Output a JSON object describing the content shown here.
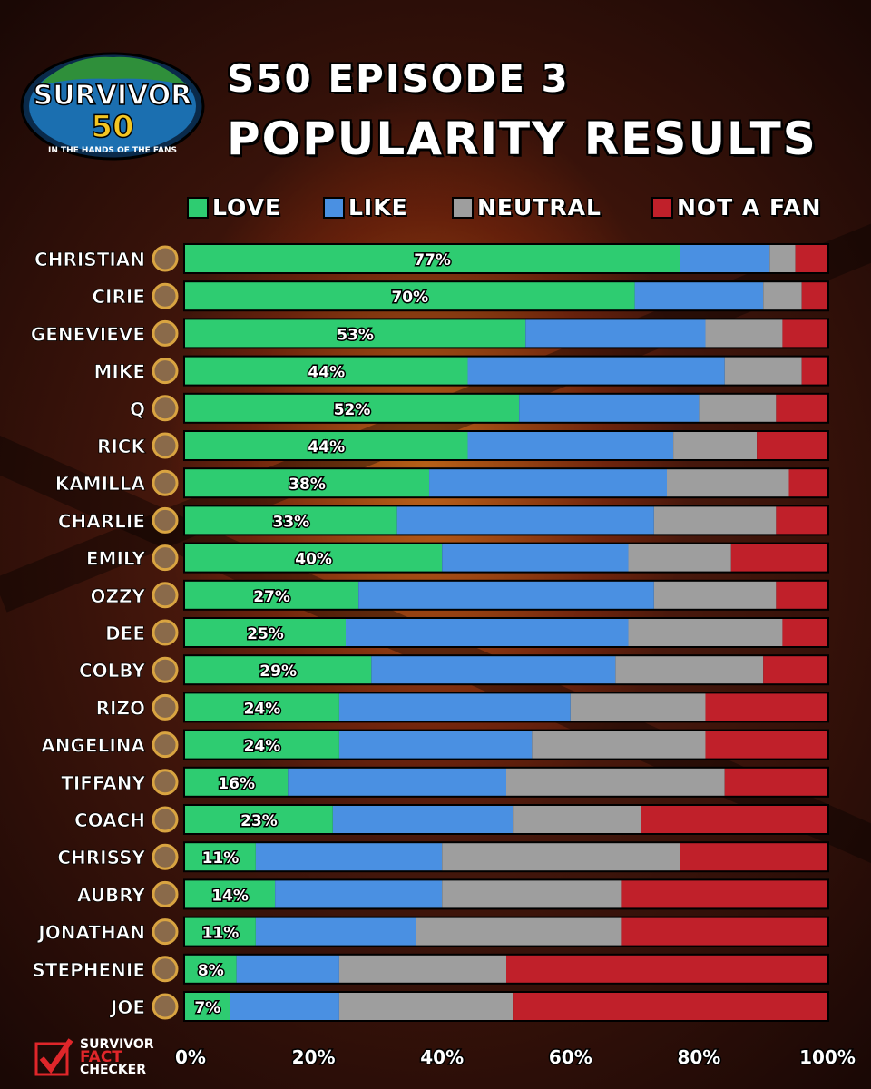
{
  "header": {
    "title_line1": "S50 EPISODE 3",
    "title_line2": "POPULARITY RESULTS"
  },
  "logo": {
    "title": "SURVIVOR",
    "number": "50",
    "tagline": "IN THE HANDS OF THE FANS"
  },
  "brand": {
    "line1": "SURVIVOR",
    "line2": "FACT",
    "line3": "CHECKER"
  },
  "colors": {
    "love": "#2ecc71",
    "like": "#4a90e2",
    "neutral": "#9e9e9e",
    "not_a_fan": "#c0202a"
  },
  "chart_data": {
    "type": "bar",
    "orientation": "horizontal",
    "stacked": true,
    "xlim": [
      0,
      100
    ],
    "x_ticks": [
      "0%",
      "20%",
      "40%",
      "60%",
      "80%",
      "100%"
    ],
    "legend": [
      "LOVE",
      "LIKE",
      "NEUTRAL",
      "NOT A FAN"
    ],
    "legend_position": "top",
    "categories": [
      "CHRISTIAN",
      "CIRIE",
      "GENEVIEVE",
      "MIKE",
      "Q",
      "RICK",
      "KAMILLA",
      "CHARLIE",
      "EMILY",
      "OZZY",
      "DEE",
      "COLBY",
      "RIZO",
      "ANGELINA",
      "TIFFANY",
      "COACH",
      "CHRISSY",
      "AUBRY",
      "JONATHAN",
      "STEPHENIE",
      "JOE"
    ],
    "series": [
      {
        "name": "LOVE",
        "values": [
          77,
          70,
          53,
          44,
          52,
          44,
          38,
          33,
          40,
          27,
          25,
          29,
          24,
          24,
          16,
          23,
          11,
          14,
          11,
          8,
          7
        ]
      },
      {
        "name": "LIKE",
        "values": [
          14,
          20,
          28,
          40,
          28,
          32,
          37,
          40,
          29,
          46,
          44,
          38,
          36,
          30,
          34,
          28,
          29,
          26,
          25,
          16,
          17
        ]
      },
      {
        "name": "NEUTRAL",
        "values": [
          4,
          6,
          12,
          12,
          12,
          13,
          19,
          19,
          16,
          19,
          24,
          23,
          21,
          27,
          34,
          20,
          37,
          28,
          32,
          26,
          27
        ]
      },
      {
        "name": "NOT A FAN",
        "values": [
          5,
          4,
          7,
          4,
          8,
          11,
          6,
          8,
          15,
          8,
          7,
          10,
          19,
          19,
          16,
          29,
          23,
          32,
          32,
          50,
          49
        ]
      }
    ],
    "love_labels": [
      "77%",
      "70%",
      "53%",
      "44%",
      "52%",
      "44%",
      "38%",
      "33%",
      "40%",
      "27%",
      "25%",
      "29%",
      "24%",
      "24%",
      "16%",
      "23%",
      "11%",
      "14%",
      "11%",
      "8%",
      "7%"
    ]
  }
}
